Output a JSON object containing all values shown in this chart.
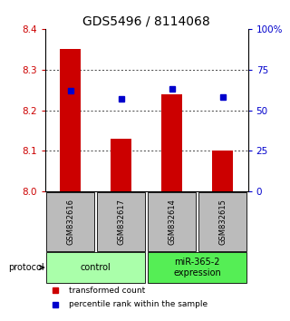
{
  "title": "GDS5496 / 8114068",
  "samples": [
    "GSM832616",
    "GSM832617",
    "GSM832614",
    "GSM832615"
  ],
  "bar_values": [
    8.35,
    8.13,
    8.24,
    8.1
  ],
  "percentile_values": [
    62,
    57,
    63,
    58
  ],
  "bar_color": "#cc0000",
  "dot_color": "#0000cc",
  "ylim": [
    8.0,
    8.4
  ],
  "ylim_right": [
    0,
    100
  ],
  "yticks_left": [
    8.0,
    8.1,
    8.2,
    8.3,
    8.4
  ],
  "yticks_right": [
    0,
    25,
    50,
    75,
    100
  ],
  "groups": [
    {
      "label": "control",
      "samples": [
        0,
        1
      ],
      "color": "#aaffaa"
    },
    {
      "label": "miR-365-2\nexpression",
      "samples": [
        2,
        3
      ],
      "color": "#55ee55"
    }
  ],
  "legend_red_label": "transformed count",
  "legend_blue_label": "percentile rank within the sample",
  "protocol_label": "protocol",
  "background_color": "#ffffff",
  "sample_box_color": "#bbbbbb",
  "title_fontsize": 10,
  "tick_fontsize": 7.5,
  "sample_fontsize": 6,
  "group_fontsize": 7,
  "legend_fontsize": 6.5
}
